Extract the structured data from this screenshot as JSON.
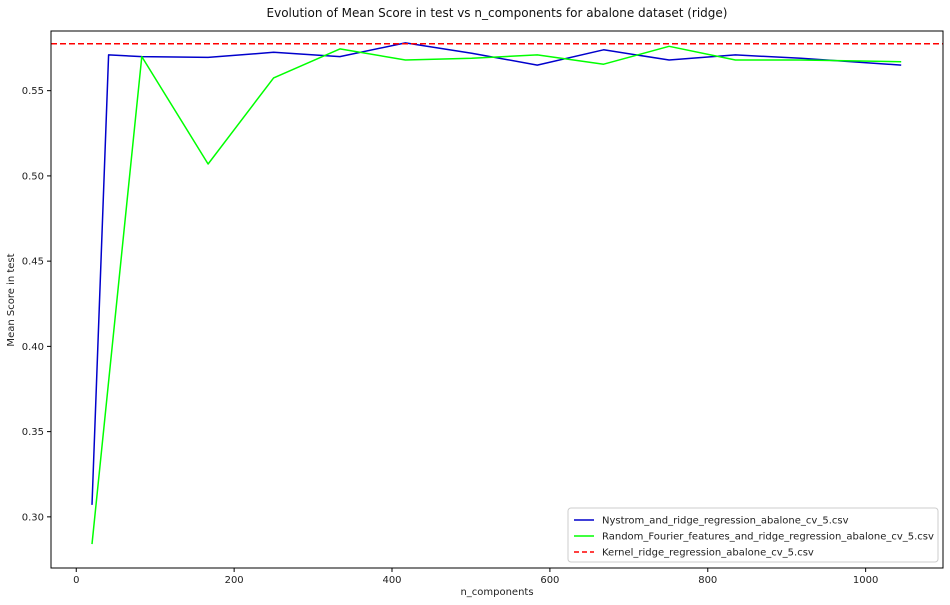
{
  "chart_data": {
    "type": "line",
    "title": "Evolution of Mean Score in test vs n_components for abalone dataset (ridge)",
    "xlabel": "n_components",
    "ylabel": "Mean Score in test",
    "xlim": [
      -32,
      1098
    ],
    "ylim": [
      0.27,
      0.585
    ],
    "xticks": [
      0,
      200,
      400,
      600,
      800,
      1000
    ],
    "yticks": [
      0.3,
      0.35,
      0.4,
      0.45,
      0.5,
      0.55
    ],
    "grid": false,
    "legend_position": "bottom-right",
    "series": [
      {
        "name": "Nystrom_and_ridge_regression_abalone_cv_5.csv",
        "color": "#0000cc",
        "style": "solid",
        "x": [
          20,
          41,
          83,
          167,
          250,
          334,
          417,
          501,
          584,
          668,
          751,
          835,
          918,
          1045
        ],
        "y": [
          0.307,
          0.571,
          0.57,
          0.5695,
          0.5725,
          0.57,
          0.578,
          0.572,
          0.565,
          0.574,
          0.568,
          0.571,
          0.569,
          0.565
        ]
      },
      {
        "name": "Random_Fourier_features_and_ridge_regression_abalone_cv_5.csv",
        "color": "#00ff00",
        "style": "solid",
        "x": [
          20,
          83,
          167,
          250,
          334,
          417,
          501,
          584,
          668,
          751,
          835,
          918,
          1045
        ],
        "y": [
          0.284,
          0.57,
          0.507,
          0.5575,
          0.5745,
          0.568,
          0.569,
          0.571,
          0.5655,
          0.576,
          0.568,
          0.568,
          0.567
        ]
      },
      {
        "name": "Kernel_ridge_regression_abalone_cv_5.csv",
        "color": "#ff0000",
        "style": "dashed",
        "constant_y": 0.5775
      }
    ]
  }
}
